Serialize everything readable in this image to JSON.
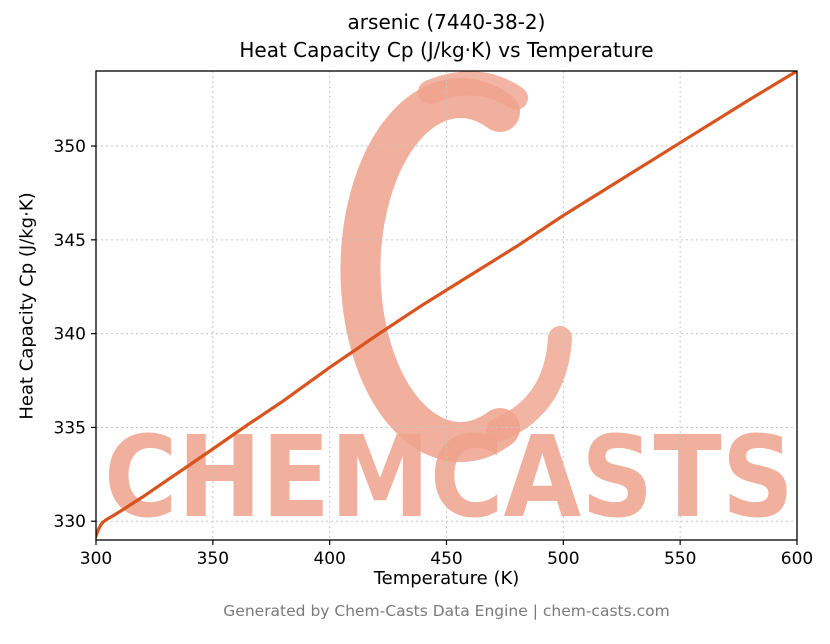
{
  "figure": {
    "title_line1": "arsenic (7440-38-2)",
    "title_line2": "Heat Capacity Cp (J/kg·K) vs Temperature",
    "footer": "Generated by Chem-Casts Data Engine | chem-casts.com",
    "watermark_text": "CHEMCASTS"
  },
  "chart_data": {
    "type": "line",
    "title": "arsenic (7440-38-2) Heat Capacity Cp (J/kg·K) vs Temperature",
    "xlabel": "Temperature (K)",
    "ylabel": "Heat Capacity Cp (J/kg·K)",
    "xlim": [
      300,
      600
    ],
    "ylim": [
      329.0,
      354.0
    ],
    "xticks": [
      300,
      350,
      400,
      450,
      500,
      550,
      600
    ],
    "yticks": [
      330,
      335,
      340,
      345,
      350
    ],
    "grid": true,
    "legend": false,
    "line_color": "#d9531e",
    "grid_color": "#c6c6c6",
    "spine_color": "#000000",
    "watermark_color": "#efa28c",
    "series": [
      {
        "name": "Heat Capacity Cp",
        "x": [
          300,
          301,
          302,
          303,
          304,
          306,
          308,
          310,
          315,
          320,
          330,
          340,
          350,
          365,
          380,
          400,
          420,
          440,
          460,
          480,
          500,
          520,
          540,
          560,
          580,
          600
        ],
        "y": [
          329.2,
          329.55,
          329.8,
          329.95,
          330.05,
          330.2,
          330.35,
          330.5,
          330.9,
          331.3,
          332.15,
          333.0,
          333.85,
          335.15,
          336.4,
          338.2,
          339.9,
          341.55,
          343.1,
          344.65,
          346.3,
          347.85,
          349.4,
          350.95,
          352.5,
          354.0
        ]
      }
    ]
  }
}
